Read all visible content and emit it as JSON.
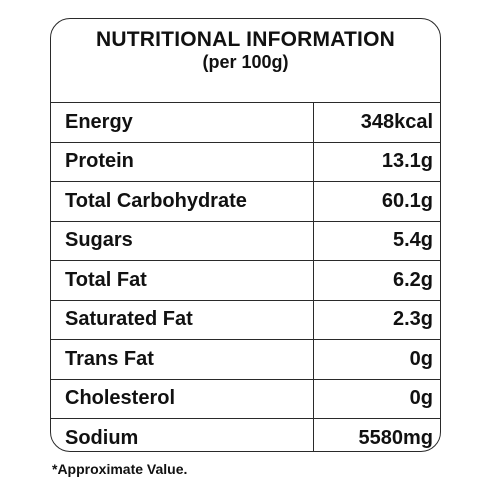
{
  "panel": {
    "title": "NUTRITIONAL INFORMATION",
    "subtitle": "(per 100g)"
  },
  "rows": [
    {
      "name": "Energy",
      "value": "348kcal"
    },
    {
      "name": "Protein",
      "value": "13.1g"
    },
    {
      "name": "Total Carbohydrate",
      "value": "60.1g"
    },
    {
      "name": "Sugars",
      "value": "5.4g"
    },
    {
      "name": "Total Fat",
      "value": "6.2g"
    },
    {
      "name": "Saturated Fat",
      "value": "2.3g"
    },
    {
      "name": "Trans Fat",
      "value": "0g"
    },
    {
      "name": "Cholesterol",
      "value": "0g"
    },
    {
      "name": "Sodium",
      "value": "5580mg"
    }
  ],
  "footnote": "*Approximate Value."
}
